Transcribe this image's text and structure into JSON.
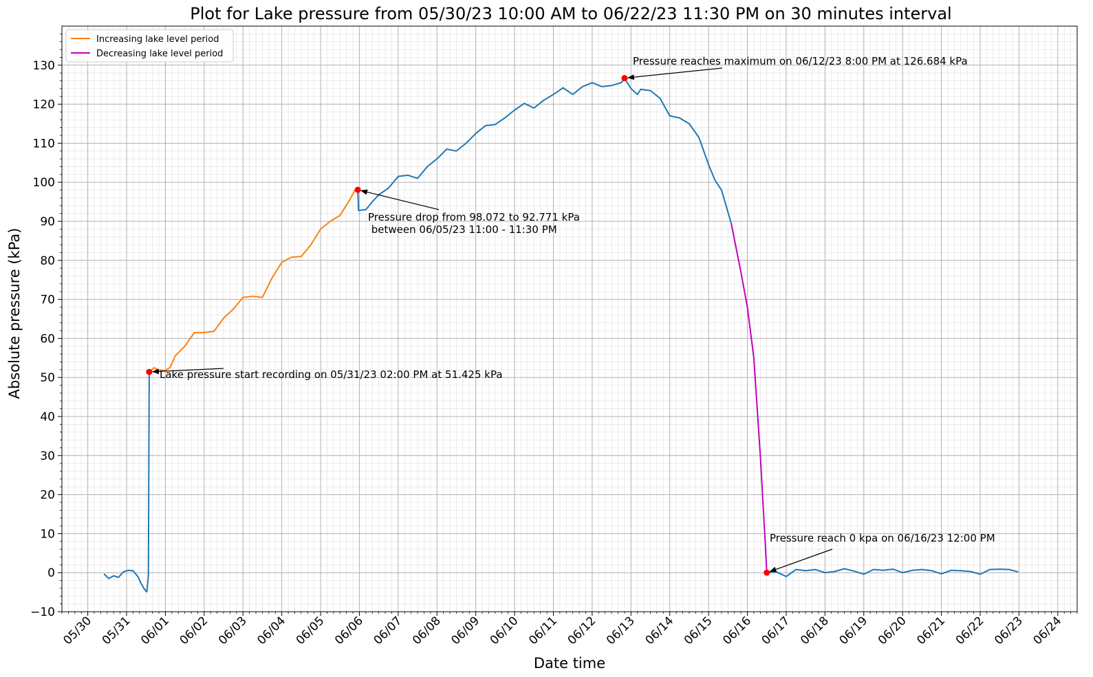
{
  "chart_data": {
    "type": "line",
    "title": "Plot for Lake pressure from 05/30/23 10:00 AM to 06/22/23 11:30 PM on 30 minutes interval",
    "xlabel": "Date time",
    "ylabel": "Absolute pressure (kPa)",
    "xlim": [
      "05/29/23 08:00",
      "06/24/23 12:00"
    ],
    "ylim": [
      -10,
      140
    ],
    "x_ticks": [
      "05/30",
      "05/31",
      "06/01",
      "06/02",
      "06/03",
      "06/04",
      "06/05",
      "06/06",
      "06/07",
      "06/08",
      "06/09",
      "06/10",
      "06/11",
      "06/12",
      "06/13",
      "06/14",
      "06/15",
      "06/16",
      "06/17",
      "06/18",
      "06/19",
      "06/20",
      "06/21",
      "06/22",
      "06/23",
      "06/24"
    ],
    "y_ticks": [
      -10,
      0,
      10,
      20,
      30,
      40,
      50,
      60,
      70,
      80,
      90,
      100,
      110,
      120,
      130
    ],
    "grid": true,
    "minor_grid": true,
    "legend": {
      "placement": "top-left",
      "entries": [
        {
          "label": "Increasing lake level period",
          "color": "#ff7f0e"
        },
        {
          "label": "Decreasing lake level period",
          "color": "#c000c0"
        }
      ]
    },
    "colors": {
      "main": "#1f77b4",
      "increasing": "#ff7f0e",
      "decreasing": "#c000c0",
      "marker": "#ff0000",
      "grid": "#b0b0b0"
    },
    "series": [
      {
        "role": "main",
        "points": [
          [
            "05/30/23 10:00",
            -0.3
          ],
          [
            "05/30/23 13:00",
            -1.5
          ],
          [
            "05/30/23 16:00",
            -0.8
          ],
          [
            "05/30/23 19:00",
            -1.2
          ],
          [
            "05/30/23 22:00",
            0.2
          ],
          [
            "05/31/23 01:00",
            0.6
          ],
          [
            "05/31/23 04:00",
            0.5
          ],
          [
            "05/31/23 07:00",
            -1.0
          ],
          [
            "05/31/23 09:00",
            -2.8
          ],
          [
            "05/31/23 11:00",
            -4.2
          ],
          [
            "05/31/23 12:30",
            -4.9
          ],
          [
            "05/31/23 13:00",
            -3.0
          ],
          [
            "05/31/23 13:30",
            -0.5
          ],
          [
            "05/31/23 14:00",
            51.425
          ]
        ]
      },
      {
        "role": "increasing",
        "points": [
          [
            "05/31/23 14:00",
            51.425
          ],
          [
            "05/31/23 17:00",
            52.5
          ],
          [
            "05/31/23 20:00",
            51.9
          ],
          [
            "06/01/23 00:00",
            51.8
          ],
          [
            "06/01/23 03:00",
            52.6
          ],
          [
            "06/01/23 06:00",
            55.5
          ],
          [
            "06/01/23 12:00",
            58.0
          ],
          [
            "06/01/23 18:00",
            61.5
          ],
          [
            "06/02/23 00:00",
            61.5
          ],
          [
            "06/02/23 06:00",
            61.8
          ],
          [
            "06/02/23 12:00",
            65.2
          ],
          [
            "06/02/23 18:00",
            67.5
          ],
          [
            "06/03/23 00:00",
            70.5
          ],
          [
            "06/03/23 06:00",
            70.8
          ],
          [
            "06/03/23 12:00",
            70.5
          ],
          [
            "06/03/23 18:00",
            75.5
          ],
          [
            "06/04/23 00:00",
            79.5
          ],
          [
            "06/04/23 06:00",
            80.8
          ],
          [
            "06/04/23 12:00",
            81.0
          ],
          [
            "06/04/23 18:00",
            84.0
          ],
          [
            "06/05/23 00:00",
            88.0
          ],
          [
            "06/05/23 06:00",
            90.0
          ],
          [
            "06/05/23 12:00",
            91.5
          ],
          [
            "06/05/23 18:00",
            95.5
          ],
          [
            "06/05/23 22:00",
            98.5
          ],
          [
            "06/05/23 23:00",
            98.072
          ]
        ]
      },
      {
        "role": "main",
        "points": [
          [
            "06/05/23 23:00",
            98.072
          ],
          [
            "06/05/23 23:30",
            92.771
          ],
          [
            "06/06/23 04:00",
            93.0
          ],
          [
            "06/06/23 08:00",
            95.0
          ],
          [
            "06/06/23 12:00",
            96.8
          ],
          [
            "06/06/23 18:00",
            98.5
          ],
          [
            "06/07/23 00:00",
            101.5
          ],
          [
            "06/07/23 06:00",
            101.8
          ],
          [
            "06/07/23 12:00",
            101.0
          ],
          [
            "06/07/23 18:00",
            104.0
          ],
          [
            "06/08/23 00:00",
            106.0
          ],
          [
            "06/08/23 06:00",
            108.5
          ],
          [
            "06/08/23 12:00",
            108.0
          ],
          [
            "06/08/23 18:00",
            110.0
          ],
          [
            "06/09/23 00:00",
            112.5
          ],
          [
            "06/09/23 06:00",
            114.5
          ],
          [
            "06/09/23 12:00",
            114.8
          ],
          [
            "06/09/23 18:00",
            116.5
          ],
          [
            "06/10/23 00:00",
            118.5
          ],
          [
            "06/10/23 06:00",
            120.2
          ],
          [
            "06/10/23 12:00",
            119.0
          ],
          [
            "06/10/23 18:00",
            121.0
          ],
          [
            "06/11/23 00:00",
            122.5
          ],
          [
            "06/11/23 06:00",
            124.2
          ],
          [
            "06/11/23 12:00",
            122.5
          ],
          [
            "06/11/23 18:00",
            124.5
          ],
          [
            "06/12/23 00:00",
            125.5
          ],
          [
            "06/12/23 06:00",
            124.5
          ],
          [
            "06/12/23 12:00",
            124.8
          ],
          [
            "06/12/23 18:00",
            125.5
          ],
          [
            "06/12/23 20:00",
            126.684
          ],
          [
            "06/13/23 00:00",
            124.0
          ],
          [
            "06/13/23 04:00",
            122.5
          ],
          [
            "06/13/23 06:00",
            123.8
          ],
          [
            "06/13/23 12:00",
            123.5
          ],
          [
            "06/13/23 18:00",
            121.5
          ],
          [
            "06/14/23 00:00",
            117.0
          ],
          [
            "06/14/23 06:00",
            116.5
          ],
          [
            "06/14/23 12:00",
            115.0
          ],
          [
            "06/14/23 18:00",
            111.5
          ],
          [
            "06/15/23 00:00",
            104.5
          ],
          [
            "06/15/23 04:00",
            100.5
          ],
          [
            "06/15/23 08:00",
            98.0
          ],
          [
            "06/15/23 14:00",
            89.5
          ]
        ]
      },
      {
        "role": "decreasing",
        "points": [
          [
            "06/15/23 14:00",
            89.5
          ],
          [
            "06/15/23 20:00",
            77.0
          ],
          [
            "06/16/23 00:00",
            68.0
          ],
          [
            "06/16/23 04:00",
            55.0
          ],
          [
            "06/16/23 08:00",
            30.0
          ],
          [
            "06/16/23 11:00",
            8.0
          ],
          [
            "06/16/23 12:00",
            0.0
          ]
        ]
      },
      {
        "role": "main",
        "points": [
          [
            "06/16/23 12:00",
            0.0
          ],
          [
            "06/16/23 18:00",
            0.2
          ],
          [
            "06/17/23 00:00",
            -1.0
          ],
          [
            "06/17/23 06:00",
            0.8
          ],
          [
            "06/17/23 12:00",
            0.5
          ],
          [
            "06/17/23 18:00",
            0.8
          ],
          [
            "06/18/23 00:00",
            0.0
          ],
          [
            "06/18/23 06:00",
            0.3
          ],
          [
            "06/18/23 12:00",
            1.0
          ],
          [
            "06/18/23 18:00",
            0.4
          ],
          [
            "06/19/23 00:00",
            -0.4
          ],
          [
            "06/19/23 06:00",
            0.8
          ],
          [
            "06/19/23 12:00",
            0.6
          ],
          [
            "06/19/23 18:00",
            0.9
          ],
          [
            "06/20/23 00:00",
            0.0
          ],
          [
            "06/20/23 06:00",
            0.6
          ],
          [
            "06/20/23 12:00",
            0.8
          ],
          [
            "06/20/23 18:00",
            0.5
          ],
          [
            "06/21/23 00:00",
            -0.3
          ],
          [
            "06/21/23 06:00",
            0.6
          ],
          [
            "06/21/23 12:00",
            0.5
          ],
          [
            "06/21/23 18:00",
            0.3
          ],
          [
            "06/22/23 00:00",
            -0.4
          ],
          [
            "06/22/23 06:00",
            0.8
          ],
          [
            "06/22/23 12:00",
            0.9
          ],
          [
            "06/22/23 18:00",
            0.8
          ],
          [
            "06/22/23 23:30",
            0.2
          ]
        ]
      }
    ],
    "markers": [
      {
        "x": "05/31/23 14:00",
        "y": 51.425
      },
      {
        "x": "06/05/23 23:00",
        "y": 98.072
      },
      {
        "x": "06/12/23 20:00",
        "y": 126.684
      },
      {
        "x": "06/16/23 12:00",
        "y": 0.0
      }
    ],
    "annotations": [
      {
        "lines": [
          "Lake pressure start recording on 05/31/23 02:00 PM at 51.425 kPa"
        ],
        "target": {
          "x": "05/31/23 14:00",
          "y": 51.425
        },
        "anchor": "right-below"
      },
      {
        "lines": [
          "Pressure drop from 98.072 to 92.771 kPa",
          " between 06/05/23 11:00 - 11:30 PM"
        ],
        "target": {
          "x": "06/05/23 23:00",
          "y": 98.072
        },
        "anchor": "right-below"
      },
      {
        "lines": [
          "Pressure reaches maximum on 06/12/23 8:00 PM at 126.684 kPa"
        ],
        "target": {
          "x": "06/12/23 20:00",
          "y": 126.684
        },
        "anchor": "right-above"
      },
      {
        "lines": [
          "Pressure reach 0 kpa on 06/16/23 12:00 PM"
        ],
        "target": {
          "x": "06/16/23 12:00",
          "y": 0.0
        },
        "anchor": "right-above"
      }
    ]
  }
}
